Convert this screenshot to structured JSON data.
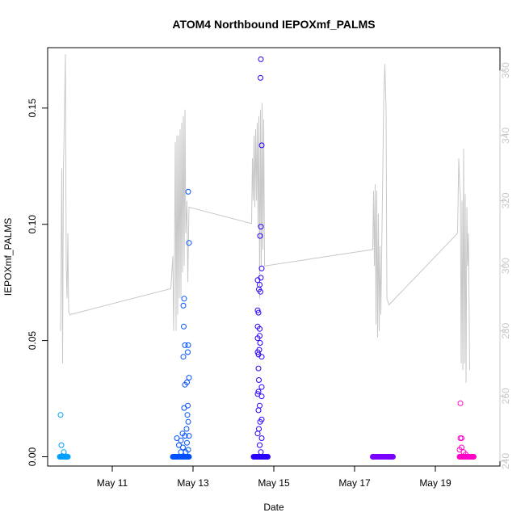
{
  "chart_data": {
    "type": "scatter",
    "title": "ATOM4 Northbound IEPOXmf_PALMS",
    "xlabel": "Date",
    "ylabel": "IEPOXmf_PALMS",
    "x_unit": "day of May 2016",
    "xlim": [
      9.4,
      20.6
    ],
    "ylim": [
      -0.004,
      0.176
    ],
    "y2lim": [
      238.5,
      367
    ],
    "x_ticks": [
      11,
      13,
      15,
      17,
      19
    ],
    "x_tick_labels": [
      "May 11",
      "May 13",
      "May 15",
      "May 17",
      "May 19"
    ],
    "y_ticks": [
      0.0,
      0.05,
      0.1,
      0.15
    ],
    "y_tick_labels": [
      "0.00",
      "0.05",
      "0.10",
      "0.15"
    ],
    "y2_ticks": [
      240,
      260,
      280,
      300,
      320,
      340,
      360
    ],
    "y2_tick_labels": [
      "240",
      "260",
      "280",
      "300",
      "320",
      "340",
      "360"
    ],
    "grid": false,
    "colors": {
      "may9": "#00a0ff",
      "may12": "#0050ff",
      "may14": "#2a00ff",
      "may17": "#7a00ff",
      "may19": "#ff00c8",
      "secondary_line": "#c8c8c8"
    },
    "series": [
      {
        "color_key": "may9",
        "x_start": 9.7,
        "x_end": 9.9,
        "baseline": 0.0,
        "points": [
          [
            9.72,
            0.018
          ],
          [
            9.74,
            0.005
          ],
          [
            9.8,
            0.002
          ],
          [
            9.76,
            0.0003
          ],
          [
            9.85,
            0.0002
          ]
        ]
      },
      {
        "color_key": "may12",
        "x_start": 12.5,
        "x_end": 12.9,
        "baseline": 0.0,
        "points": [
          [
            12.88,
            0.114
          ],
          [
            12.9,
            0.092
          ],
          [
            12.78,
            0.068
          ],
          [
            12.76,
            0.065
          ],
          [
            12.77,
            0.056
          ],
          [
            12.8,
            0.048
          ],
          [
            12.88,
            0.048
          ],
          [
            12.76,
            0.043
          ],
          [
            12.87,
            0.045
          ],
          [
            12.9,
            0.034
          ],
          [
            12.85,
            0.032
          ],
          [
            12.8,
            0.031
          ],
          [
            12.87,
            0.022
          ],
          [
            12.78,
            0.021
          ],
          [
            12.86,
            0.018
          ],
          [
            12.88,
            0.015
          ],
          [
            12.74,
            0.01
          ],
          [
            12.84,
            0.012
          ],
          [
            12.8,
            0.009
          ],
          [
            12.6,
            0.008
          ],
          [
            12.7,
            0.007
          ],
          [
            12.9,
            0.009
          ],
          [
            12.65,
            0.005
          ],
          [
            12.85,
            0.006
          ],
          [
            12.75,
            0.004
          ],
          [
            12.88,
            0.003
          ],
          [
            12.7,
            0.002
          ],
          [
            12.82,
            0.002
          ]
        ]
      },
      {
        "color_key": "may14",
        "x_start": 14.5,
        "x_end": 14.85,
        "baseline": 0.0,
        "points": [
          [
            14.68,
            0.171
          ],
          [
            14.67,
            0.163
          ],
          [
            14.7,
            0.134
          ],
          [
            14.68,
            0.099
          ],
          [
            14.66,
            0.095
          ],
          [
            14.7,
            0.081
          ],
          [
            14.6,
            0.076
          ],
          [
            14.68,
            0.077
          ],
          [
            14.65,
            0.074
          ],
          [
            14.63,
            0.072
          ],
          [
            14.67,
            0.071
          ],
          [
            14.6,
            0.063
          ],
          [
            14.62,
            0.062
          ],
          [
            14.6,
            0.056
          ],
          [
            14.65,
            0.055
          ],
          [
            14.65,
            0.052
          ],
          [
            14.6,
            0.051
          ],
          [
            14.66,
            0.049
          ],
          [
            14.64,
            0.046
          ],
          [
            14.6,
            0.045
          ],
          [
            14.62,
            0.044
          ],
          [
            14.7,
            0.043
          ],
          [
            14.62,
            0.038
          ],
          [
            14.63,
            0.033
          ],
          [
            14.7,
            0.03
          ],
          [
            14.62,
            0.028
          ],
          [
            14.6,
            0.027
          ],
          [
            14.7,
            0.026
          ],
          [
            14.65,
            0.022
          ],
          [
            14.62,
            0.02
          ],
          [
            14.7,
            0.016
          ],
          [
            14.66,
            0.015
          ],
          [
            14.63,
            0.012
          ],
          [
            14.6,
            0.01
          ],
          [
            14.7,
            0.008
          ],
          [
            14.65,
            0.005
          ],
          [
            14.68,
            0.002
          ]
        ]
      },
      {
        "color_key": "may17",
        "x_start": 17.45,
        "x_end": 17.95,
        "baseline": 0.0,
        "points": []
      },
      {
        "color_key": "may19",
        "x_start": 19.6,
        "x_end": 19.95,
        "baseline": 0.0,
        "points": [
          [
            19.62,
            0.023
          ],
          [
            19.65,
            0.008
          ],
          [
            19.62,
            0.008
          ],
          [
            19.65,
            0.004
          ],
          [
            19.6,
            0.003
          ],
          [
            19.7,
            0.002
          ],
          [
            19.75,
            0.001
          ]
        ]
      }
    ],
    "secondary_line": [
      [
        9.72,
        280
      ],
      [
        9.75,
        330
      ],
      [
        9.77,
        270
      ],
      [
        9.79,
        330
      ],
      [
        9.8,
        335
      ],
      [
        9.82,
        350
      ],
      [
        9.84,
        365
      ],
      [
        9.86,
        300
      ],
      [
        9.88,
        290
      ],
      [
        9.9,
        310
      ],
      [
        9.92,
        286
      ],
      [
        9.95,
        285
      ],
      [
        12.45,
        293
      ],
      [
        12.5,
        303
      ],
      [
        12.52,
        280
      ],
      [
        12.54,
        300
      ],
      [
        12.56,
        338
      ],
      [
        12.58,
        280
      ],
      [
        12.6,
        340
      ],
      [
        12.62,
        285
      ],
      [
        12.64,
        340
      ],
      [
        12.66,
        290
      ],
      [
        12.68,
        342
      ],
      [
        12.7,
        290
      ],
      [
        12.72,
        344
      ],
      [
        12.74,
        298
      ],
      [
        12.76,
        346
      ],
      [
        12.78,
        300
      ],
      [
        12.8,
        348
      ],
      [
        12.82,
        310
      ],
      [
        12.85,
        320
      ],
      [
        12.87,
        295
      ],
      [
        12.9,
        318
      ],
      [
        14.45,
        313
      ],
      [
        14.47,
        333
      ],
      [
        14.49,
        320
      ],
      [
        14.51,
        340
      ],
      [
        14.53,
        318
      ],
      [
        14.55,
        342
      ],
      [
        14.57,
        320
      ],
      [
        14.59,
        344
      ],
      [
        14.61,
        312
      ],
      [
        14.63,
        346
      ],
      [
        14.65,
        290
      ],
      [
        14.67,
        348
      ],
      [
        14.69,
        300
      ],
      [
        14.71,
        350
      ],
      [
        14.73,
        305
      ],
      [
        14.75,
        345
      ],
      [
        14.77,
        300
      ],
      [
        14.8,
        300
      ],
      [
        17.45,
        305
      ],
      [
        17.47,
        323
      ],
      [
        17.49,
        300
      ],
      [
        17.51,
        325
      ],
      [
        17.53,
        282
      ],
      [
        17.55,
        323
      ],
      [
        17.57,
        278
      ],
      [
        17.59,
        316
      ],
      [
        17.61,
        280
      ],
      [
        17.63,
        306
      ],
      [
        17.65,
        285
      ],
      [
        17.7,
        330
      ],
      [
        17.72,
        350
      ],
      [
        17.75,
        362
      ],
      [
        17.78,
        348
      ],
      [
        17.8,
        290
      ],
      [
        17.85,
        288
      ],
      [
        19.55,
        310
      ],
      [
        19.58,
        333
      ],
      [
        19.6,
        325
      ],
      [
        19.62,
        322
      ],
      [
        19.64,
        270
      ],
      [
        19.66,
        320
      ],
      [
        19.68,
        268
      ],
      [
        19.7,
        336
      ],
      [
        19.72,
        270
      ],
      [
        19.74,
        322
      ],
      [
        19.76,
        264
      ],
      [
        19.78,
        318
      ],
      [
        19.8,
        300
      ],
      [
        19.82,
        310
      ],
      [
        19.85,
        268
      ]
    ]
  }
}
